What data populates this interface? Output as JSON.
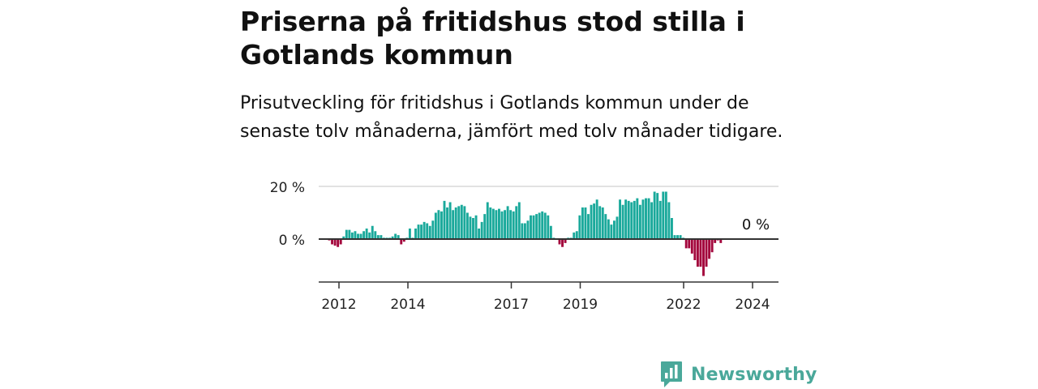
{
  "header": {
    "title": "Priserna på fritidshus stod stilla i Gotlands kommun",
    "subtitle": "Prisutveckling för fritidshus i Gotlands kommun under de senaste tolv månaderna, jämfört med tolv månader tidigare."
  },
  "brand": {
    "name": "Newsworthy",
    "icon": "newsworthy-logo-icon"
  },
  "colors": {
    "positive": "#1aa99b",
    "negative": "#a3063c",
    "axis": "#333333",
    "grid": "#d9d9d9",
    "brand": "#4aa89a"
  },
  "chart_data": {
    "type": "bar",
    "unit": "%",
    "y_ticks": [
      {
        "value": 20,
        "label": "20 %"
      },
      {
        "value": 0,
        "label": "0 %"
      }
    ],
    "ylim": [
      -15,
      22
    ],
    "grid": true,
    "x_ticks": [
      "2012",
      "2014",
      "2017",
      "2019",
      "2022",
      "2024"
    ],
    "x_tick_values": [
      2012,
      2014,
      2017,
      2019,
      2022,
      2024
    ],
    "annotation": {
      "label": "0 %",
      "value": 0
    },
    "start_year": 2011.5,
    "values": [
      0,
      -0.5,
      -2,
      -2.5,
      -3,
      -2,
      1,
      3.5,
      3.5,
      2.5,
      3,
      2,
      2,
      3,
      4,
      2.5,
      5,
      3,
      1.5,
      1.5,
      0.5,
      0.5,
      0.5,
      1,
      2,
      1.5,
      -2,
      -1,
      0.5,
      4,
      0.5,
      4,
      5.5,
      5.5,
      6.5,
      6,
      5,
      7,
      10,
      11,
      10.5,
      14.5,
      12,
      14,
      11,
      12,
      12.5,
      13,
      12.5,
      10,
      8.5,
      8,
      9,
      4,
      6.5,
      9.5,
      14,
      12,
      11.5,
      11,
      11.5,
      10.5,
      11,
      12.5,
      11,
      10.5,
      12.5,
      14,
      6,
      6,
      7,
      9,
      9,
      9.5,
      10,
      10.5,
      10,
      9,
      5,
      0.5,
      0,
      -2,
      -3,
      -1.5,
      0.5,
      0.5,
      2.5,
      3,
      9,
      12,
      12,
      9.5,
      13,
      13.5,
      15,
      12.5,
      12,
      9.5,
      7.5,
      5.5,
      7,
      8.5,
      15,
      13,
      15,
      14.5,
      14,
      14.5,
      15.5,
      13,
      15,
      15.5,
      15.5,
      14,
      18,
      17.5,
      14.5,
      18,
      18,
      14,
      8,
      1.5,
      1.5,
      1.5,
      0.5,
      -3.5,
      -3.5,
      -5.5,
      -8,
      -10.5,
      -10.5,
      -14,
      -10.5,
      -7.5,
      -5,
      -1.5,
      -0.5,
      -1.5
    ]
  }
}
